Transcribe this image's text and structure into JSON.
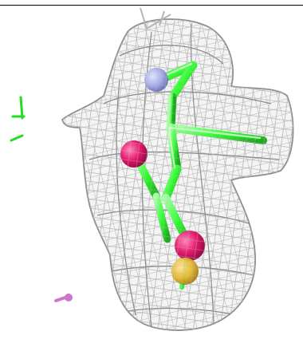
{
  "viewer": {
    "background": "#ffffff",
    "mesh_color": "#c9c9c9",
    "mesh_dark": "#9a9a9a",
    "carbon_color": "#33ff33",
    "oxygen_color": "#e6196e",
    "nitrogen_color": "#a3a8e6",
    "sulfur_color": "#e6b422",
    "marker_color": "#cc77cc"
  },
  "icons": {
    "axis": "axis-glyph-icon",
    "probe": "probe-marker-icon"
  }
}
